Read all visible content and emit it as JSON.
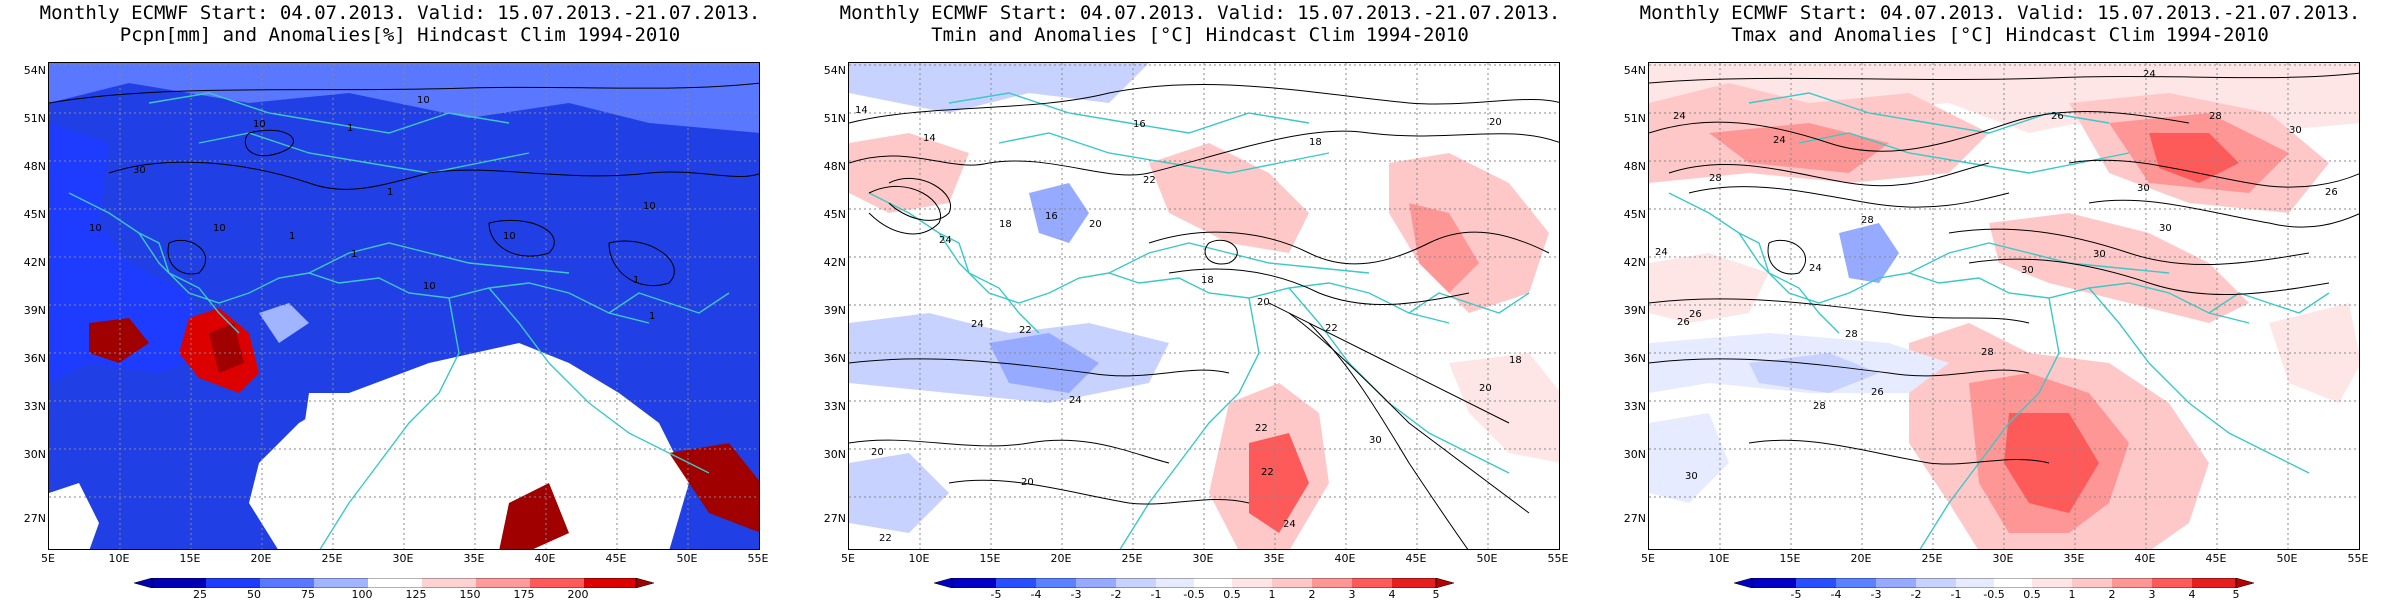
{
  "panels": [
    {
      "title_line1": "Monthly ECMWF Start: 04.07.2013. Valid: 15.07.2013.-21.07.2013.",
      "title_line2": "Pcpn[mm] and Anomalies[%] Hindcast Clim 1994-2010",
      "colorbar_labels": [
        "25",
        "50",
        "75",
        "100",
        "125",
        "150",
        "175",
        "200"
      ],
      "contour_labels": [
        "10",
        "10",
        "30",
        "10",
        "10",
        "1",
        "1",
        "1",
        "1",
        "10",
        "10",
        "10",
        "1",
        "1"
      ]
    },
    {
      "title_line1": "Monthly ECMWF Start: 04.07.2013. Valid: 15.07.2013.-21.07.2013.",
      "title_line2": "Tmin and Anomalies [°C] Hindcast Clim 1994-2010",
      "colorbar_labels": [
        "-5",
        "-4",
        "-3",
        "-2",
        "-1",
        "-0.5",
        "0.5",
        "1",
        "2",
        "3",
        "4",
        "5"
      ],
      "contour_labels": [
        "14",
        "16",
        "18",
        "20",
        "14",
        "22",
        "16",
        "18",
        "20",
        "24",
        "22",
        "18",
        "20",
        "22",
        "24",
        "20",
        "22",
        "20",
        "24",
        "22",
        "30",
        "22",
        "24",
        "20",
        "18"
      ]
    },
    {
      "title_line1": "Monthly ECMWF Start: 04.07.2013. Valid: 15.07.2013.-21.07.2013.",
      "title_line2": "Tmax and Anomalies [°C] Hindcast Clim 1994-2010",
      "colorbar_labels": [
        "-5",
        "-4",
        "-3",
        "-2",
        "-1",
        "-0.5",
        "0.5",
        "1",
        "2",
        "3",
        "4",
        "5"
      ],
      "contour_labels": [
        "24",
        "24",
        "26",
        "28",
        "30",
        "24",
        "28",
        "30",
        "26",
        "28",
        "24",
        "26",
        "30",
        "30",
        "28",
        "24",
        "26",
        "28",
        "30",
        "28",
        "30",
        "26"
      ]
    }
  ],
  "lat_labels": [
    "54N",
    "51N",
    "48N",
    "45N",
    "42N",
    "39N",
    "36N",
    "33N",
    "30N",
    "27N"
  ],
  "lon_labels": [
    "5E",
    "10E",
    "15E",
    "20E",
    "25E",
    "30E",
    "35E",
    "40E",
    "45E",
    "50E",
    "55E"
  ],
  "colors": {
    "pcpn_scale": [
      "#0000b4",
      "#1e3cff",
      "#5a78ff",
      "#a0b4ff",
      "#dce6ff",
      "#ffffff",
      "#ffd2d2",
      "#ff9b9b",
      "#ff5a5a",
      "#dc0000",
      "#a00000"
    ],
    "temp_scale": [
      "#0000c8",
      "#2850ff",
      "#5a82ff",
      "#96aaff",
      "#c8d2ff",
      "#e6ebff",
      "#ffffff",
      "#ffe6e6",
      "#ffc8c8",
      "#ff9696",
      "#ff5a5a",
      "#e61e1e",
      "#b40000"
    ],
    "coast": "#3cc8c8"
  }
}
